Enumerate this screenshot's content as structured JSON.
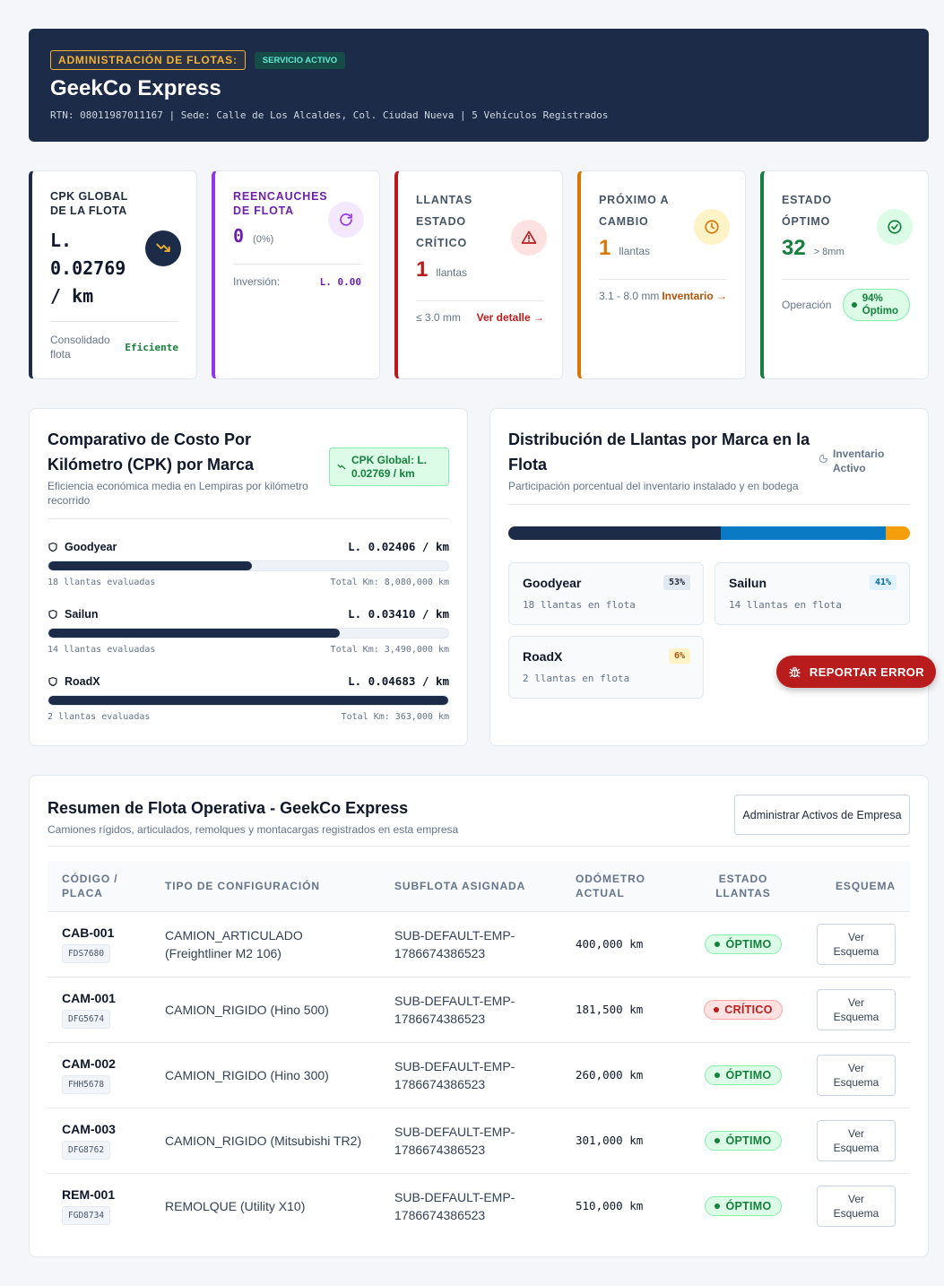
{
  "header": {
    "admin_label": "ADMINISTRACIÓN DE FLOTAS:",
    "status_badge": "SERVICIO ACTIVO",
    "company": "GeekCo Express",
    "details": "RTN: 08011987011167 | Sede: Calle de Los Alcaldes, Col. Ciudad Nueva | 5 Vehículos Registrados"
  },
  "kpis": {
    "cpk": {
      "label_line1": "CPK GLOBAL",
      "label_line2": "DE LA FLOTA",
      "value_line1": "L.",
      "value_line2": "0.02769",
      "value_line3": "/ km",
      "foot_left_line1": "Consolidado",
      "foot_left_line2": "flota",
      "foot_right": "Eficiente",
      "icon": "trending-down-icon"
    },
    "retreads": {
      "label_line1": "REENCAUCHES",
      "label_line2": "DE FLOTA",
      "value": "0",
      "pct": "(0%)",
      "foot_left": "Inversión:",
      "foot_right": "L. 0.00",
      "icon": "refresh-icon"
    },
    "critical": {
      "label_line1": "LLANTAS",
      "label_line2": "ESTADO",
      "label_line3": "CRÍTICO",
      "value": "1",
      "unit": "llantas",
      "foot_left": "≤ 3.0 mm",
      "foot_right": "Ver detalle →",
      "icon": "warning-icon"
    },
    "next_change": {
      "label_line1": "PRÓXIMO A",
      "label_line2": "CAMBIO",
      "value": "1",
      "unit": "llantas",
      "foot_left": "3.1 - 8.0 mm",
      "foot_right": "Inventario →",
      "icon": "clock-icon"
    },
    "optimal": {
      "label_line1": "ESTADO",
      "label_line2": "ÓPTIMO",
      "value": "32",
      "unit": "> 8mm",
      "foot_left": "Operación",
      "foot_pct": "94%",
      "foot_status": "Óptimo",
      "icon": "check-circle-icon"
    }
  },
  "cpk_panel": {
    "title_line1": "Comparativo de Costo Por",
    "title_line2": "Kilómetro (CPK) por Marca",
    "subtitle_line1": "Eficiencia económica media en Lempiras por kilómetro",
    "subtitle_line2": "recorrido",
    "badge_line1": "CPK Global: L.",
    "badge_line2": "0.02769 / km",
    "rows": [
      {
        "brand": "Goodyear",
        "cpk": "L. 0.02406 / km",
        "count": "18 llantas evaluadas",
        "km": "Total Km: 8,080,000 km",
        "fill": 0.51
      },
      {
        "brand": "Sailun",
        "cpk": "L. 0.03410 / km",
        "count": "14 llantas evaluadas",
        "km": "Total Km: 3,490,000 km",
        "fill": 0.728
      },
      {
        "brand": "RoadX",
        "cpk": "L. 0.04683 / km",
        "count": "2 llantas evaluadas",
        "km": "Total Km: 363,000 km",
        "fill": 1.0
      }
    ]
  },
  "dist_panel": {
    "title_line1": "Distribución de Llantas por Marca en la",
    "title_line2": "Flota",
    "subtitle": "Participación porcentual del inventario instalado y en bodega",
    "badge_line1": "Inventario",
    "badge_line2": "Activo",
    "segments": [
      {
        "brand": "Goodyear",
        "share": 0.53,
        "color": "#1c2b48"
      },
      {
        "brand": "Sailun",
        "share": 0.41,
        "color": "#0a7ac4"
      },
      {
        "brand": "RoadX",
        "share": 0.06,
        "color": "#f59e0b"
      }
    ],
    "cards": [
      {
        "brand": "Goodyear",
        "count": "18 llantas en flota",
        "pct": "53%"
      },
      {
        "brand": "Sailun",
        "count": "14 llantas en flota",
        "pct": "41%"
      },
      {
        "brand": "RoadX",
        "count": "2 llantas en flota",
        "pct": "6%"
      }
    ]
  },
  "report_button": "REPORTAR ERROR",
  "fleet": {
    "title": "Resumen de Flota Operativa - GeekCo Express",
    "subtitle": "Camiones rígidos, articulados, remolques y montacargas registrados en esta empresa",
    "manage_button": "Administrar Activos de Empresa",
    "columns": {
      "code_line1": "CÓDIGO /",
      "code_line2": "PLACA",
      "config": "TIPO DE CONFIGURACIÓN",
      "subfleet": "SUBFLOTA ASIGNADA",
      "odo_line1": "ODÓMETRO",
      "odo_line2": "ACTUAL",
      "status_line1": "ESTADO",
      "status_line2": "LLANTAS",
      "schema": "ESQUEMA"
    },
    "schema_button_line1": "Ver",
    "schema_button_line2": "Esquema",
    "rows": [
      {
        "code": "CAB-001",
        "plate": "FDS7680",
        "config_line1": "CAMION_ARTICULADO",
        "config_line2": "(Freightliner M2 106)",
        "sub_line1": "SUB-DEFAULT-EMP-",
        "sub_line2": "1786674386523",
        "odometer": "400,000 km",
        "status": "ÓPTIMO",
        "kind": "ok"
      },
      {
        "code": "CAM-001",
        "plate": "DFG5674",
        "config_line1": "CAMION_RIGIDO (Hino 500)",
        "config_line2": "",
        "sub_line1": "SUB-DEFAULT-EMP-",
        "sub_line2": "1786674386523",
        "odometer": "181,500 km",
        "status": "CRÍTICO",
        "kind": "crit"
      },
      {
        "code": "CAM-002",
        "plate": "FHH5678",
        "config_line1": "CAMION_RIGIDO (Hino 300)",
        "config_line2": "",
        "sub_line1": "SUB-DEFAULT-EMP-",
        "sub_line2": "1786674386523",
        "odometer": "260,000 km",
        "status": "ÓPTIMO",
        "kind": "ok"
      },
      {
        "code": "CAM-003",
        "plate": "DFG8762",
        "config_line1": "CAMION_RIGIDO (Mitsubishi TR2)",
        "config_line2": "",
        "sub_line1": "SUB-DEFAULT-EMP-",
        "sub_line2": "1786674386523",
        "odometer": "301,000 km",
        "status": "ÓPTIMO",
        "kind": "ok"
      },
      {
        "code": "REM-001",
        "plate": "FGD8734",
        "config_line1": "REMOLQUE (Utility X10)",
        "config_line2": "",
        "sub_line1": "SUB-DEFAULT-EMP-",
        "sub_line2": "1786674386523",
        "odometer": "510,000 km",
        "status": "ÓPTIMO",
        "kind": "ok"
      }
    ]
  }
}
